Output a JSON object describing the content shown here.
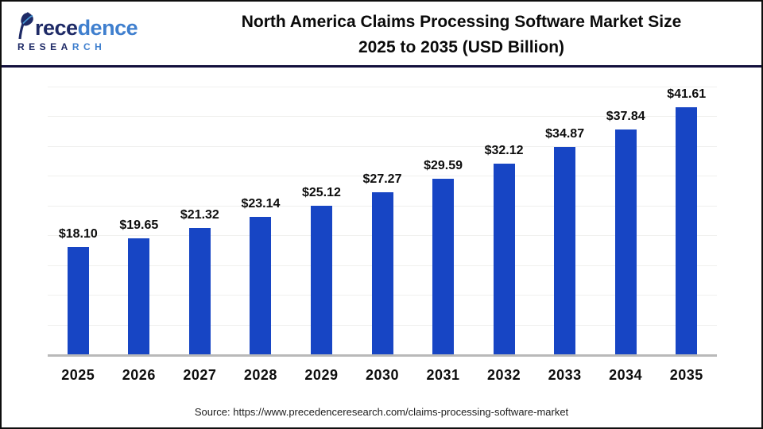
{
  "header": {
    "logo": {
      "brand_text": "Precedence",
      "brand_dark": "rece",
      "brand_light": "dence",
      "subtitle_text": "RESEARCH",
      "subtitle_dark": "RESEA",
      "subtitle_light": "RCH"
    },
    "title_line1": "North America Claims Processing Software Market Size",
    "title_line2": "2025 to 2035 (USD Billion)"
  },
  "chart_data": {
    "type": "bar",
    "title": "North America Claims Processing Software Market Size 2025 to 2035 (USD Billion)",
    "unit": "USD Billion",
    "categories": [
      "2025",
      "2026",
      "2027",
      "2028",
      "2029",
      "2030",
      "2031",
      "2032",
      "2033",
      "2034",
      "2035"
    ],
    "values": [
      18.1,
      19.65,
      21.32,
      23.14,
      25.12,
      27.27,
      29.59,
      32.12,
      34.87,
      37.84,
      41.61
    ],
    "value_labels": [
      "$18.10",
      "$19.65",
      "$21.32",
      "$23.14",
      "$25.12",
      "$27.27",
      "$29.59",
      "$32.12",
      "$34.87",
      "$37.84",
      "$41.61"
    ],
    "xlabel": "",
    "ylabel": "",
    "ylim": [
      0,
      45
    ],
    "gridline_step": 5,
    "grid": true,
    "legend": false,
    "bar_color": "#1745c4"
  },
  "footer": {
    "source": "Source: https://www.precedenceresearch.com/claims-processing-software-market"
  },
  "colors": {
    "bar": "#1745c4",
    "header_divider": "#13103d",
    "baseline": "#b9b9b9",
    "gridline": "#f0f0ee",
    "logo_dark": "#1e2a66",
    "logo_light": "#3f7fce"
  }
}
